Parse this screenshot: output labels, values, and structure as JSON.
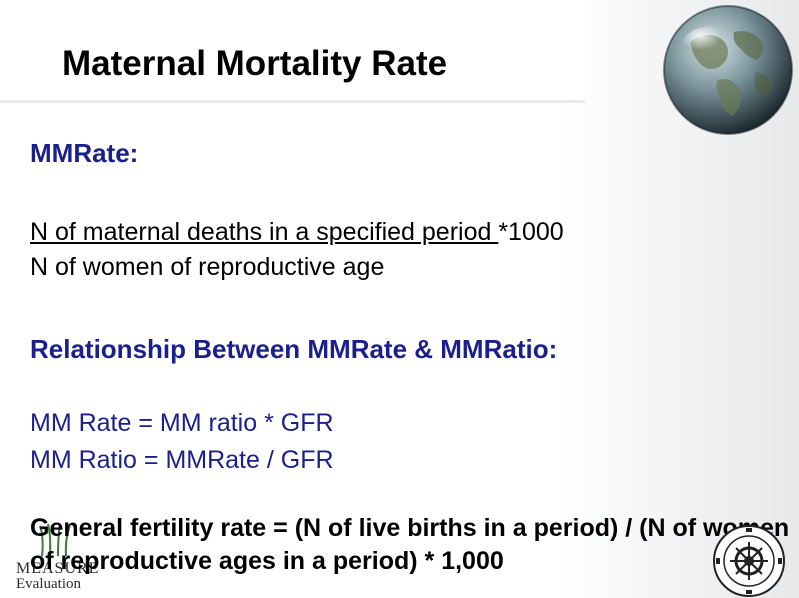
{
  "slide": {
    "title": "Maternal Mortality Rate",
    "mmrate_heading": "MMRate:",
    "formula_numerator_underlined": "N of maternal deaths in a specified period ",
    "formula_multiplier": "*1000",
    "formula_denominator": "N of women of reproductive age",
    "relationship_heading": "Relationship Between MMRate & MMRatio:",
    "eq1": "MM Rate = MM ratio * GFR",
    "eq2": "MM Ratio = MMRate / GFR",
    "gfr_definition": "General fertility rate = (N of live births in a period) / (N of women of reproductive ages in a period) * 1,000"
  },
  "logos": {
    "left_line1": "MEASURE",
    "left_line2": "Evaluation"
  },
  "colors": {
    "heading_blue": "#1a1f8c",
    "text": "#000000",
    "background": "#ffffff"
  },
  "icons": [
    "globe-image",
    "measure-evaluation-logo",
    "university-seal-logo"
  ]
}
